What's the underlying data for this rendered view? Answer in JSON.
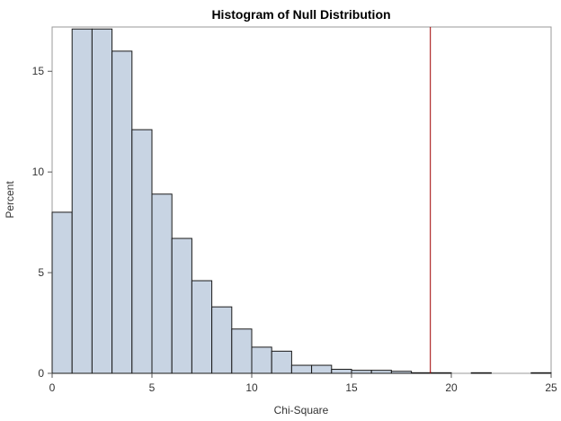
{
  "chart_data": {
    "type": "bar",
    "title": "Histogram of Null Distribution",
    "xlabel": "Chi-Square",
    "ylabel": "Percent",
    "xlim": [
      0,
      25
    ],
    "ylim": [
      0,
      17.2
    ],
    "bin_width": 1,
    "bins": [
      {
        "x0": 0,
        "x1": 1,
        "value": 8.0
      },
      {
        "x0": 1,
        "x1": 2,
        "value": 17.1
      },
      {
        "x0": 2,
        "x1": 3,
        "value": 17.1
      },
      {
        "x0": 3,
        "x1": 4,
        "value": 16.0
      },
      {
        "x0": 4,
        "x1": 5,
        "value": 12.1
      },
      {
        "x0": 5,
        "x1": 6,
        "value": 8.9
      },
      {
        "x0": 6,
        "x1": 7,
        "value": 6.7
      },
      {
        "x0": 7,
        "x1": 8,
        "value": 4.6
      },
      {
        "x0": 8,
        "x1": 9,
        "value": 3.3
      },
      {
        "x0": 9,
        "x1": 10,
        "value": 2.2
      },
      {
        "x0": 10,
        "x1": 11,
        "value": 1.3
      },
      {
        "x0": 11,
        "x1": 12,
        "value": 1.1
      },
      {
        "x0": 12,
        "x1": 13,
        "value": 0.4
      },
      {
        "x0": 13,
        "x1": 14,
        "value": 0.4
      },
      {
        "x0": 14,
        "x1": 15,
        "value": 0.2
      },
      {
        "x0": 15,
        "x1": 16,
        "value": 0.15
      },
      {
        "x0": 16,
        "x1": 17,
        "value": 0.15
      },
      {
        "x0": 17,
        "x1": 18,
        "value": 0.1
      },
      {
        "x0": 18,
        "x1": 19,
        "value": 0.03
      },
      {
        "x0": 19,
        "x1": 20,
        "value": 0.03
      },
      {
        "x0": 20,
        "x1": 21,
        "value": 0.0
      },
      {
        "x0": 21,
        "x1": 22,
        "value": 0.03
      },
      {
        "x0": 22,
        "x1": 23,
        "value": 0.0
      },
      {
        "x0": 23,
        "x1": 24,
        "value": 0.0
      },
      {
        "x0": 24,
        "x1": 25,
        "value": 0.03
      }
    ],
    "x_ticks": [
      0,
      5,
      10,
      15,
      20,
      25
    ],
    "y_ticks": [
      0,
      5,
      10,
      15
    ],
    "reference_line": {
      "x": 18.95,
      "color": "#A00000"
    },
    "bar_color": "#C8D4E3",
    "grid": false
  }
}
